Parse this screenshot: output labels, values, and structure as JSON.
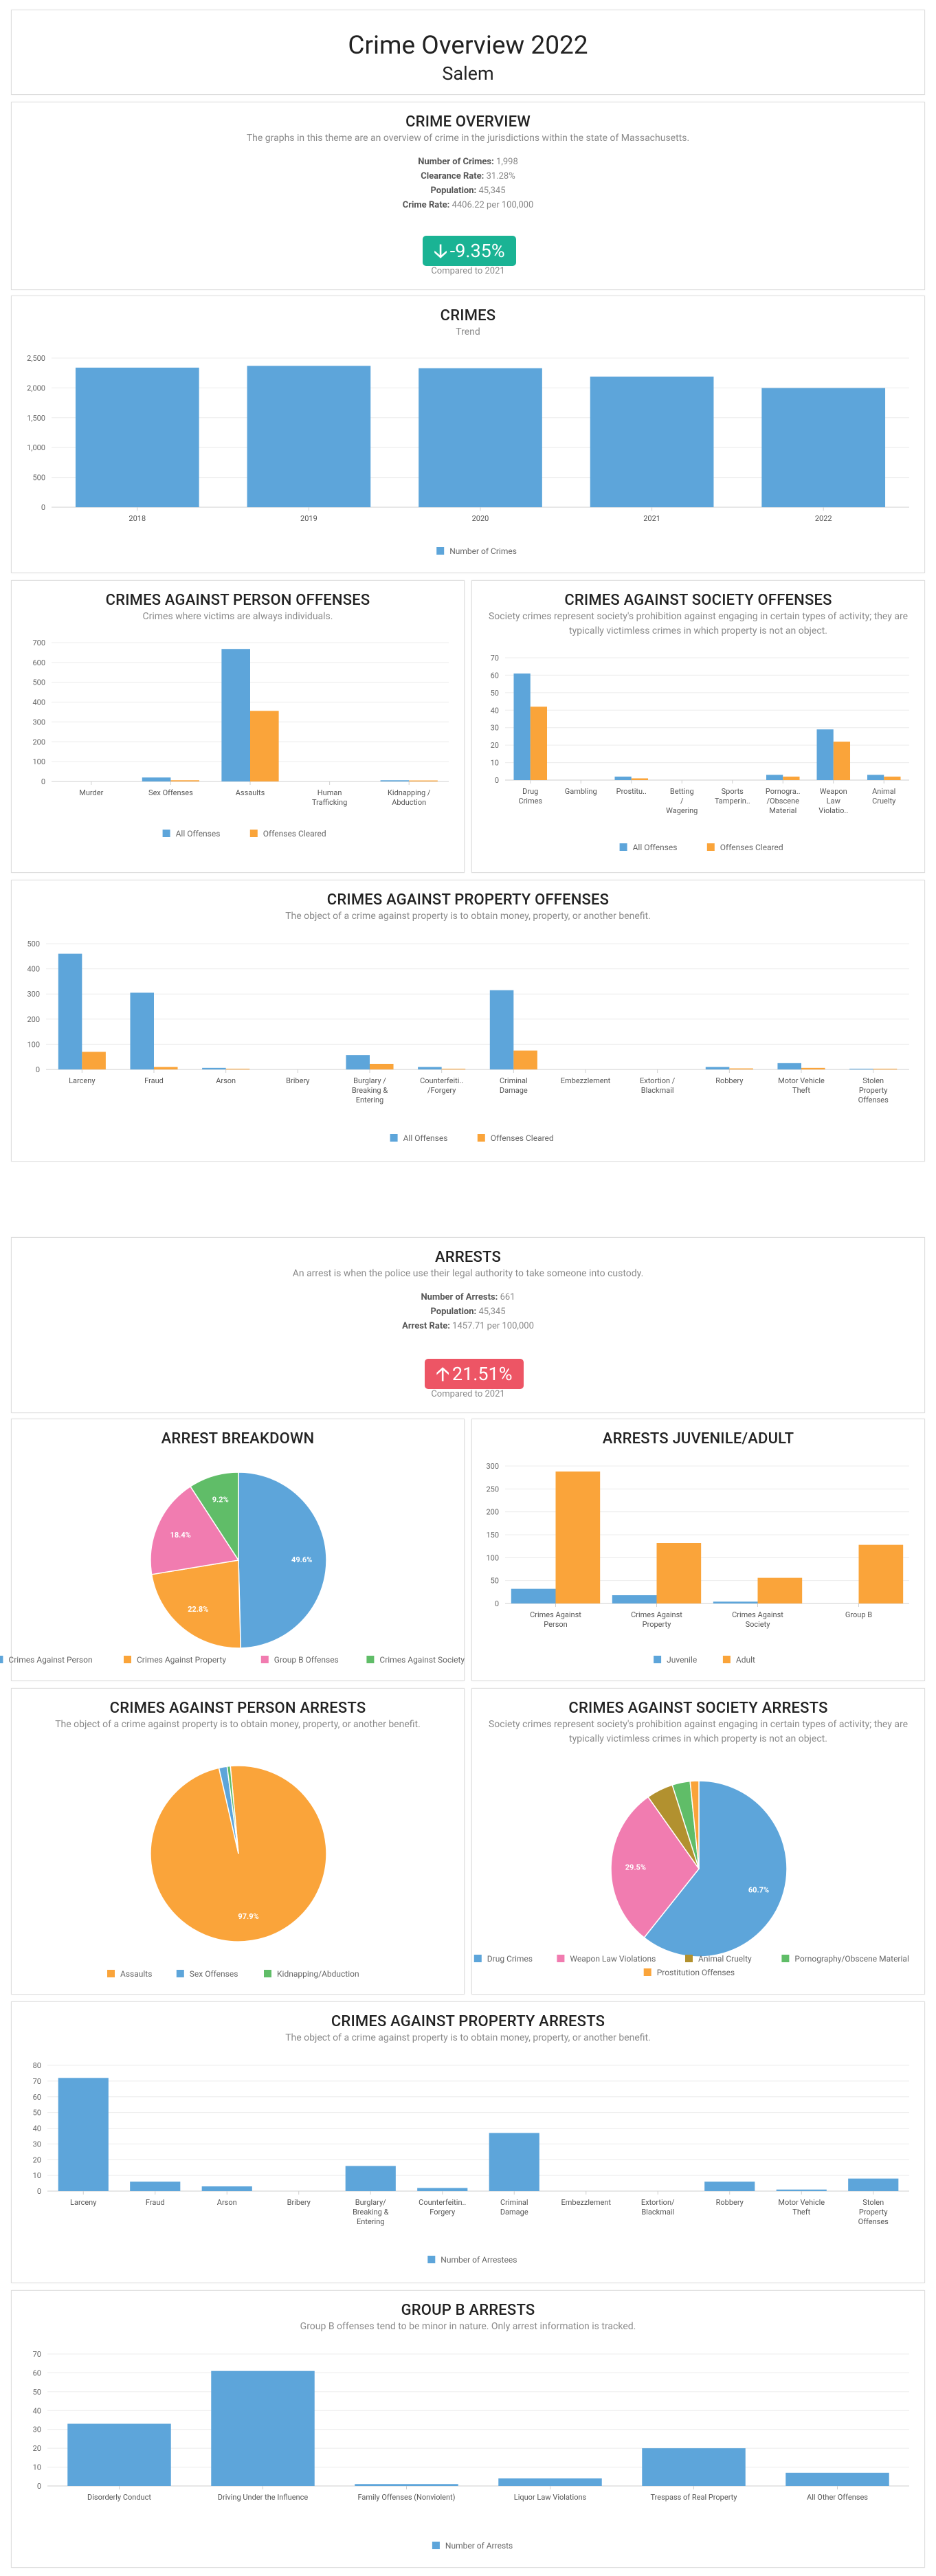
{
  "header": {
    "title": "Crime Overview 2022",
    "subtitle": "Salem"
  },
  "crime_overview": {
    "title": "CRIME OVERVIEW",
    "description": "The graphs in this theme are an overview of crime in the jurisdictions within the state of Massachusetts.",
    "stats": [
      {
        "label": "Number of Crimes:",
        "value": "1,998"
      },
      {
        "label": "Clearance Rate:",
        "value": "31.28%"
      },
      {
        "label": "Population:",
        "value": "45,345"
      },
      {
        "label": "Crime Rate:",
        "value": "4406.22 per 100,000"
      }
    ],
    "change": "-9.35%",
    "change_direction": "down",
    "change_color": "#1ab394",
    "compare": "Compared to 2021"
  },
  "arrests": {
    "title": "ARRESTS",
    "description": "An arrest is when the police use their legal authority to take someone into custody.",
    "stats": [
      {
        "label": "Number of Arrests:",
        "value": "661"
      },
      {
        "label": "Population:",
        "value": "45,345"
      },
      {
        "label": "Arrest Rate:",
        "value": "1457.71 per 100,000"
      }
    ],
    "change": "21.51%",
    "change_direction": "up",
    "change_color": "#ed5565",
    "compare": "Compared to 2021"
  },
  "colors": {
    "blue": "#5da5da",
    "orange": "#faa43a",
    "pink": "#f17cb0",
    "green": "#60bd68",
    "olive": "#b2912f"
  },
  "chart_data": [
    {
      "id": "crimes",
      "type": "bar",
      "title": "CRIMES",
      "subtitle": "Trend",
      "categories": [
        "2018",
        "2019",
        "2020",
        "2021",
        "2022"
      ],
      "series": [
        {
          "name": "Number of Crimes",
          "color": "#5da5da",
          "values": [
            2340,
            2370,
            2330,
            2190,
            1998
          ]
        }
      ],
      "ylim": [
        0,
        2500
      ],
      "yticks": [
        "0",
        "500",
        "1,000",
        "1,500",
        "2,000",
        "2,500"
      ],
      "legend": "bottom"
    },
    {
      "id": "person_offenses",
      "type": "bar",
      "title": "CRIMES AGAINST PERSON OFFENSES",
      "subtitle": "Crimes where victims are always individuals.",
      "categories": [
        "Murder",
        "Sex Offenses",
        "Assaults",
        "Human\nTrafficking",
        "Kidnapping /\nAbduction"
      ],
      "series": [
        {
          "name": "All Offenses",
          "color": "#5da5da",
          "values": [
            0,
            20,
            668,
            0,
            6
          ]
        },
        {
          "name": "Offenses Cleared",
          "color": "#faa43a",
          "values": [
            0,
            6,
            356,
            0,
            5
          ]
        }
      ],
      "ylim": [
        0,
        700
      ],
      "yticks": [
        "0",
        "100",
        "200",
        "300",
        "400",
        "500",
        "600",
        "700"
      ],
      "legend": "bottom"
    },
    {
      "id": "society_offenses",
      "type": "bar",
      "title": "CRIMES AGAINST SOCIETY OFFENSES",
      "subtitle": "Society crimes represent society's prohibition against engaging in certain types of activity; they are typically victimless crimes in which property is not an object.",
      "categories": [
        "Drug\nCrimes",
        "Gambling",
        "Prostitu..",
        "Betting\n/\nWagering",
        "Sports\nTamperin..",
        "Pornogra..\n/Obscene\nMaterial",
        "Weapon\nLaw\nViolatio..",
        "Animal\nCruelty"
      ],
      "series": [
        {
          "name": "All Offenses",
          "color": "#5da5da",
          "values": [
            61,
            0,
            2,
            0,
            0,
            3,
            29,
            3
          ]
        },
        {
          "name": "Offenses Cleared",
          "color": "#faa43a",
          "values": [
            42,
            0,
            1,
            0,
            0,
            2,
            22,
            2
          ]
        }
      ],
      "ylim": [
        0,
        70
      ],
      "yticks": [
        "0",
        "10",
        "20",
        "30",
        "40",
        "50",
        "60",
        "70"
      ],
      "legend": "bottom"
    },
    {
      "id": "property_offenses",
      "type": "bar",
      "title": "CRIMES AGAINST PROPERTY OFFENSES",
      "subtitle": "The object of a crime against property is to obtain money, property, or another benefit.",
      "categories": [
        "Larceny",
        "Fraud",
        "Arson",
        "Bribery",
        "Burglary /\nBreaking &\nEntering",
        "Counterfeiti..\n/Forgery",
        "Criminal\nDamage",
        "Embezzlement",
        "Extortion /\nBlackmail",
        "Robbery",
        "Motor Vehicle\nTheft",
        "Stolen\nProperty\nOffenses"
      ],
      "series": [
        {
          "name": "All Offenses",
          "color": "#5da5da",
          "values": [
            460,
            305,
            6,
            0,
            57,
            10,
            315,
            0,
            0,
            10,
            25,
            3
          ]
        },
        {
          "name": "Offenses Cleared",
          "color": "#faa43a",
          "values": [
            70,
            10,
            3,
            0,
            22,
            3,
            75,
            0,
            0,
            4,
            6,
            3
          ]
        }
      ],
      "ylim": [
        0,
        500
      ],
      "yticks": [
        "0",
        "100",
        "200",
        "300",
        "400",
        "500"
      ],
      "legend": "bottom"
    },
    {
      "id": "arrest_breakdown",
      "type": "pie",
      "title": "ARREST BREAKDOWN",
      "labels": [
        "Crimes Against Person",
        "Crimes Against Property",
        "Group B Offenses",
        "Crimes Against Society"
      ],
      "values": [
        49.6,
        22.8,
        18.4,
        9.2
      ],
      "slice_labels": [
        "49.6%",
        "22.8%",
        "18.4%",
        "9.2%"
      ],
      "colors": [
        "#5da5da",
        "#faa43a",
        "#f17cb0",
        "#60bd68"
      ],
      "legend": "bottom"
    },
    {
      "id": "juvenile_adult",
      "type": "bar",
      "title": "ARRESTS JUVENILE/ADULT",
      "categories": [
        "Crimes Against\nPerson",
        "Crimes Against\nProperty",
        "Crimes Against\nSociety",
        "Group B"
      ],
      "series": [
        {
          "name": "Juvenile",
          "color": "#5da5da",
          "values": [
            32,
            18,
            4,
            0
          ]
        },
        {
          "name": "Adult",
          "color": "#faa43a",
          "values": [
            288,
            132,
            56,
            128
          ]
        }
      ],
      "ylim": [
        0,
        300
      ],
      "yticks": [
        "0",
        "50",
        "100",
        "150",
        "200",
        "250",
        "300"
      ],
      "legend": "bottom"
    },
    {
      "id": "person_arrests",
      "type": "pie",
      "title": "CRIMES AGAINST PERSON ARRESTS",
      "subtitle": "The object of a crime against property is to obtain money, property, or another benefit.",
      "labels": [
        "Assaults",
        "Sex Offenses",
        "Kidnapping/Abduction"
      ],
      "values": [
        97.9,
        1.5,
        0.6
      ],
      "slice_labels": [
        "97.9%",
        "",
        ""
      ],
      "colors": [
        "#faa43a",
        "#5da5da",
        "#60bd68"
      ],
      "legend": "bottom"
    },
    {
      "id": "society_arrests",
      "type": "pie",
      "title": "CRIMES AGAINST SOCIETY ARRESTS",
      "subtitle": "Society crimes represent society's prohibition against engaging in certain types of activity; they are typically victimless crimes in which property is not an object.",
      "labels": [
        "Drug Crimes",
        "Weapon Law Violations",
        "Animal Cruelty",
        "Pornography/Obscene Material",
        "Prostitution Offenses"
      ],
      "values": [
        60.7,
        29.5,
        4.9,
        3.3,
        1.6
      ],
      "slice_labels": [
        "60.7%",
        "29.5%",
        "",
        "",
        ""
      ],
      "colors": [
        "#5da5da",
        "#f17cb0",
        "#b2912f",
        "#60bd68",
        "#faa43a"
      ],
      "legend": "bottom"
    },
    {
      "id": "property_arrests",
      "type": "bar",
      "title": "CRIMES AGAINST PROPERTY ARRESTS",
      "subtitle": "The object of a crime against property is to obtain money, property, or another benefit.",
      "categories": [
        "Larceny",
        "Fraud",
        "Arson",
        "Bribery",
        "Burglary/\nBreaking &\nEntering",
        "Counterfeitin..\nForgery",
        "Criminal\nDamage",
        "Embezzlement",
        "Extortion/\nBlackmail",
        "Robbery",
        "Motor Vehicle\nTheft",
        "Stolen\nProperty\nOffenses"
      ],
      "series": [
        {
          "name": "Number of Arrestees",
          "color": "#5da5da",
          "values": [
            72,
            6,
            3,
            0,
            16,
            2,
            37,
            0,
            0,
            6,
            1,
            8
          ]
        }
      ],
      "ylim": [
        0,
        80
      ],
      "yticks": [
        "0",
        "10",
        "20",
        "30",
        "40",
        "50",
        "60",
        "70",
        "80"
      ],
      "legend": "bottom"
    },
    {
      "id": "group_b",
      "type": "bar",
      "title": "GROUP B ARRESTS",
      "subtitle": "Group B offenses tend to be minor in nature. Only arrest information is tracked.",
      "categories": [
        "Disorderly Conduct",
        "Driving Under the Influence",
        "Family Offenses (Nonviolent)",
        "Liquor Law Violations",
        "Trespass of Real Property",
        "All Other Offenses"
      ],
      "series": [
        {
          "name": "Number of Arrests",
          "color": "#5da5da",
          "values": [
            33,
            61,
            1,
            4,
            20,
            7
          ]
        }
      ],
      "ylim": [
        0,
        70
      ],
      "yticks": [
        "0",
        "10",
        "20",
        "30",
        "40",
        "50",
        "60",
        "70"
      ],
      "legend": "bottom"
    }
  ]
}
